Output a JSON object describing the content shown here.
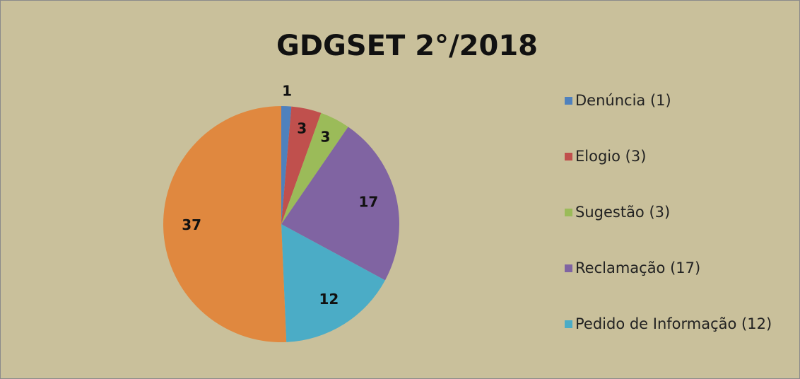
{
  "chart_data": {
    "type": "pie",
    "title": "GDGSET 2°/2018",
    "categories": [
      "Denúncia  (1)",
      "Elogio  (3)",
      "Sugestão  (3)",
      "Reclamação  (17)",
      "Pedido de Informação (12)",
      null
    ],
    "values": [
      1,
      3,
      3,
      17,
      12,
      37
    ],
    "colors": [
      "#4f81bd",
      "#c0504d",
      "#9bbb59",
      "#8064a2",
      "#4bacc6",
      "#e0883f"
    ]
  }
}
